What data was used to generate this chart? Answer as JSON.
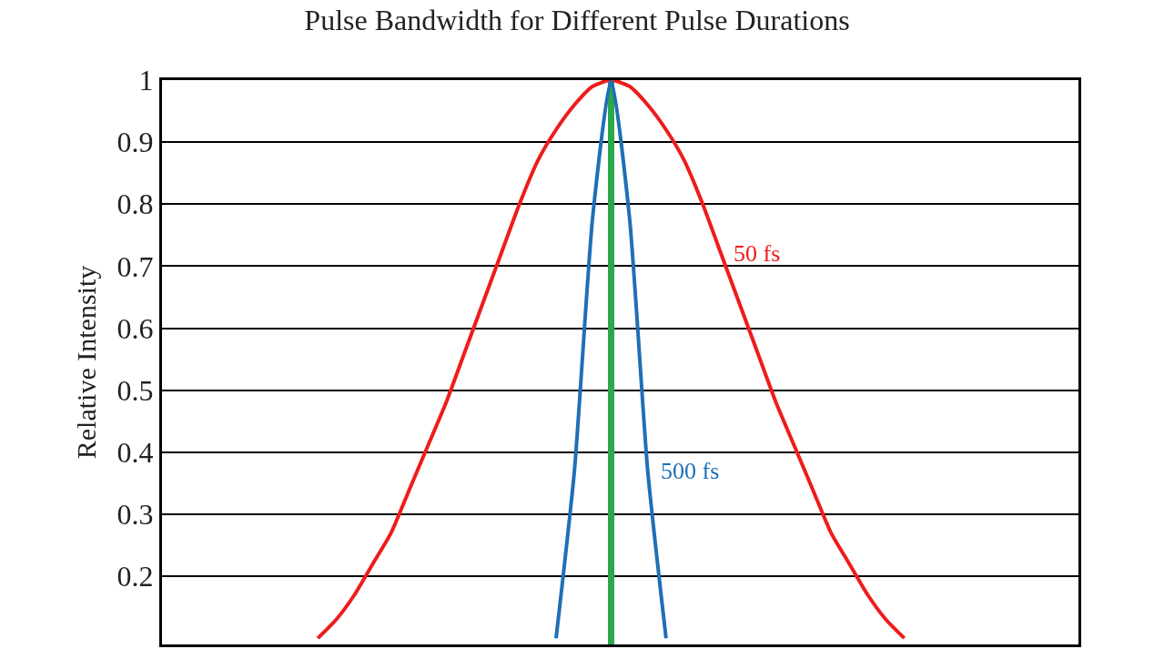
{
  "chart_data": {
    "type": "line",
    "title": "Pulse Bandwidth for Different Pulse Durations",
    "ylabel": "Relative Intensity",
    "categories": [
      null,
      null,
      null,
      null,
      null,
      null,
      null,
      null,
      null,
      null,
      null,
      null,
      null,
      null,
      null,
      null,
      null,
      null,
      null,
      null,
      null,
      null,
      null,
      null,
      null,
      null,
      null,
      null,
      null,
      null,
      null,
      null,
      null,
      null,
      null,
      null,
      null,
      null,
      null,
      null,
      null,
      null,
      null,
      null,
      null,
      null,
      null,
      null,
      null,
      null
    ],
    "series": [
      {
        "name": "50 fs",
        "color": "#ee1c1c",
        "values": [
          null,
          null,
          null,
          null,
          null,
          null,
          null,
          null,
          0.1,
          0.13,
          0.17,
          0.22,
          0.27,
          0.34,
          0.41,
          0.48,
          0.56,
          0.64,
          0.72,
          0.8,
          0.87,
          0.92,
          0.96,
          0.99,
          1,
          0.99,
          0.96,
          0.92,
          0.87,
          0.8,
          0.72,
          0.64,
          0.56,
          0.48,
          0.41,
          0.34,
          0.27,
          0.22,
          0.17,
          0.13,
          0.1,
          null,
          null,
          null,
          null,
          null,
          null,
          null,
          null,
          null
        ]
      },
      {
        "name": "500 fs",
        "color": "#1f6fb5",
        "values": [
          null,
          null,
          null,
          null,
          null,
          null,
          null,
          null,
          null,
          null,
          null,
          null,
          null,
          null,
          null,
          null,
          null,
          null,
          null,
          null,
          null,
          0.1,
          0.37,
          0.78,
          1,
          0.78,
          0.37,
          0.1,
          null,
          null,
          null,
          null,
          null,
          null,
          null,
          null,
          null,
          null,
          null,
          null,
          null,
          null,
          null,
          null,
          null,
          null,
          null,
          null,
          null,
          null
        ]
      },
      {
        "type": "bar",
        "color": "#2aa84a",
        "values": [
          null,
          null,
          null,
          null,
          null,
          null,
          null,
          null,
          null,
          null,
          null,
          null,
          null,
          null,
          null,
          null,
          null,
          null,
          null,
          null,
          null,
          null,
          null,
          null,
          1,
          null,
          null,
          null,
          null,
          null,
          null,
          null,
          null,
          null,
          null,
          null,
          null,
          null,
          null,
          null,
          null,
          null,
          null,
          null,
          null,
          null,
          null,
          null,
          null,
          null
        ]
      }
    ],
    "ylim": [
      0.09,
      1
    ],
    "yticks": [
      0.2,
      0.3,
      0.4,
      0.5,
      0.6,
      0.7,
      0.8,
      0.9,
      1
    ],
    "grid": "y",
    "legend": false,
    "tick_labels": "y",
    "marker": "none",
    "line_style": "solid"
  }
}
